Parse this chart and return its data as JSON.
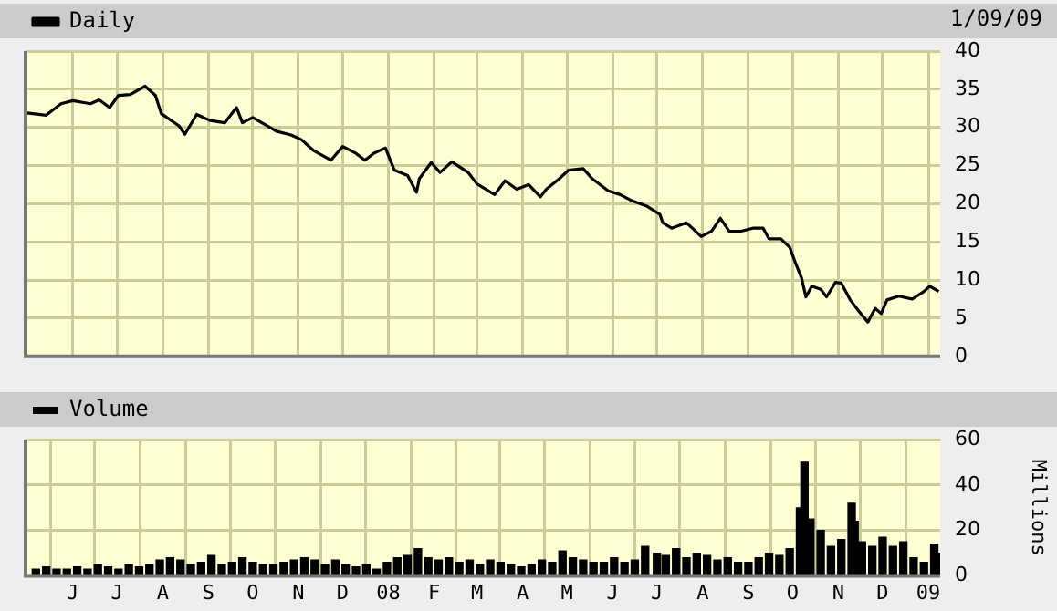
{
  "chart_data": [
    {
      "type": "line",
      "annotations": [
        "1/09/09"
      ],
      "x": [
        "2007-05-01",
        "2007-05-14",
        "2007-05-24",
        "2007-06-01",
        "2007-06-13",
        "2007-06-19",
        "2007-06-26",
        "2007-07-02",
        "2007-07-10",
        "2007-07-20",
        "2007-07-27",
        "2007-07-31",
        "2007-08-12",
        "2007-08-16",
        "2007-08-24",
        "2007-09-02",
        "2007-09-12",
        "2007-09-20",
        "2007-09-24",
        "2007-10-01",
        "2007-10-11",
        "2007-10-17",
        "2007-10-27",
        "2007-11-03",
        "2007-11-11",
        "2007-11-23",
        "2007-12-01",
        "2007-12-10",
        "2007-12-16",
        "2007-12-22",
        "2007-12-30",
        "2008-01-05",
        "2008-01-14",
        "2008-01-20",
        "2008-01-22",
        "2008-01-30",
        "2008-02-05",
        "2008-02-13",
        "2008-02-24",
        "2008-03-01",
        "2008-03-13",
        "2008-03-20",
        "2008-03-28",
        "2008-04-05",
        "2008-04-13",
        "2008-04-17",
        "2008-04-26",
        "2008-05-02",
        "2008-05-12",
        "2008-05-18",
        "2008-05-29",
        "2008-06-06",
        "2008-06-14",
        "2008-06-24",
        "2008-07-03",
        "2008-07-05",
        "2008-07-11",
        "2008-07-21",
        "2008-07-25",
        "2008-07-31",
        "2008-08-07",
        "2008-08-13",
        "2008-08-19",
        "2008-08-27",
        "2008-09-04",
        "2008-09-11",
        "2008-09-15",
        "2008-09-23",
        "2008-09-29",
        "2008-10-03",
        "2008-10-07",
        "2008-10-10",
        "2008-10-14",
        "2008-10-20",
        "2008-10-24",
        "2008-10-30",
        "2008-11-03",
        "2008-11-09",
        "2008-11-15",
        "2008-11-21",
        "2008-11-26",
        "2008-11-30",
        "2008-12-04",
        "2008-12-12",
        "2008-12-21",
        "2008-12-29",
        "2009-01-02",
        "2009-01-08"
      ],
      "series": [
        {
          "name": "Daily",
          "color": "#000000",
          "values": [
            31.9,
            31.6,
            33.1,
            33.5,
            33.1,
            33.6,
            32.6,
            34.2,
            34.3,
            35.4,
            34.2,
            31.8,
            30.2,
            29.1,
            31.7,
            30.9,
            30.6,
            32.6,
            30.6,
            31.3,
            30.2,
            29.5,
            29.0,
            28.4,
            27.0,
            25.7,
            27.5,
            26.6,
            25.7,
            26.6,
            27.3,
            24.4,
            23.7,
            21.5,
            23.3,
            25.4,
            24.1,
            25.5,
            24.1,
            22.6,
            21.2,
            23.0,
            21.9,
            22.5,
            20.9,
            21.9,
            23.3,
            24.4,
            24.6,
            23.3,
            21.7,
            21.2,
            20.4,
            19.7,
            18.6,
            17.5,
            16.8,
            17.5,
            16.8,
            15.7,
            16.4,
            18.1,
            16.4,
            16.4,
            16.8,
            16.8,
            15.4,
            15.4,
            14.3,
            12.2,
            10.3,
            7.8,
            9.2,
            8.8,
            7.8,
            9.7,
            9.6,
            7.4,
            5.9,
            4.5,
            6.3,
            5.6,
            7.4,
            7.9,
            7.5,
            8.5,
            9.2,
            8.5
          ]
        }
      ],
      "xlim": [
        "2007-04-30",
        "2009-01-09"
      ],
      "xticks": [
        {
          "value": "2007-06-01",
          "label": null
        },
        {
          "value": "2007-07-01",
          "label": null
        },
        {
          "value": "2007-08-01",
          "label": null
        },
        {
          "value": "2007-09-01",
          "label": null
        },
        {
          "value": "2007-10-01",
          "label": null
        },
        {
          "value": "2007-11-01",
          "label": null
        },
        {
          "value": "2007-12-01",
          "label": null
        },
        {
          "value": "2008-01-01",
          "label": null
        },
        {
          "value": "2008-02-01",
          "label": null
        },
        {
          "value": "2008-03-01",
          "label": null
        },
        {
          "value": "2008-04-01",
          "label": null
        },
        {
          "value": "2008-05-01",
          "label": null
        },
        {
          "value": "2008-06-01",
          "label": null
        },
        {
          "value": "2008-07-01",
          "label": null
        },
        {
          "value": "2008-08-01",
          "label": null
        },
        {
          "value": "2008-09-01",
          "label": null
        },
        {
          "value": "2008-10-01",
          "label": null
        },
        {
          "value": "2008-11-01",
          "label": null
        },
        {
          "value": "2008-12-01",
          "label": null
        },
        {
          "value": "2009-01-01",
          "label": null
        }
      ],
      "ylim": [
        0,
        40
      ],
      "yticks": [
        0,
        5,
        10,
        15,
        20,
        25,
        30,
        35,
        40
      ],
      "grid": true,
      "legend": "top left",
      "marker": "none",
      "line_style": "solid",
      "tick_labels": "y"
    },
    {
      "type": "bar",
      "ylabel": "Millions",
      "x": [
        "2007-05-07",
        "2007-05-14",
        "2007-05-21",
        "2007-05-28",
        "2007-06-04",
        "2007-06-11",
        "2007-06-18",
        "2007-06-25",
        "2007-07-02",
        "2007-07-09",
        "2007-07-16",
        "2007-07-23",
        "2007-07-30",
        "2007-08-06",
        "2007-08-13",
        "2007-08-20",
        "2007-08-27",
        "2007-09-03",
        "2007-09-10",
        "2007-09-17",
        "2007-09-24",
        "2007-10-01",
        "2007-10-08",
        "2007-10-15",
        "2007-10-22",
        "2007-10-29",
        "2007-11-05",
        "2007-11-12",
        "2007-11-19",
        "2007-11-26",
        "2007-12-03",
        "2007-12-10",
        "2007-12-17",
        "2007-12-24",
        "2007-12-31",
        "2008-01-07",
        "2008-01-14",
        "2008-01-21",
        "2008-01-28",
        "2008-02-04",
        "2008-02-11",
        "2008-02-18",
        "2008-02-25",
        "2008-03-03",
        "2008-03-10",
        "2008-03-17",
        "2008-03-24",
        "2008-03-31",
        "2008-04-07",
        "2008-04-14",
        "2008-04-21",
        "2008-04-28",
        "2008-05-05",
        "2008-05-12",
        "2008-05-19",
        "2008-05-26",
        "2008-06-02",
        "2008-06-09",
        "2008-06-16",
        "2008-06-23",
        "2008-07-01",
        "2008-07-07",
        "2008-07-14",
        "2008-07-21",
        "2008-07-28",
        "2008-08-04",
        "2008-08-11",
        "2008-08-18",
        "2008-08-25",
        "2008-09-01",
        "2008-09-08",
        "2008-09-15",
        "2008-09-22",
        "2008-09-29",
        "2008-10-06",
        "2008-10-09",
        "2008-10-13",
        "2008-10-20",
        "2008-10-27",
        "2008-11-03",
        "2008-11-10",
        "2008-11-12",
        "2008-11-17",
        "2008-11-24",
        "2008-12-01",
        "2008-12-08",
        "2008-12-15",
        "2008-12-22",
        "2008-12-29",
        "2009-01-05",
        "2009-01-08"
      ],
      "series": [
        {
          "name": "Volume",
          "color": "#000000",
          "values": [
            3,
            4,
            3,
            3,
            4,
            3,
            5,
            4,
            3,
            5,
            4,
            5,
            7,
            8,
            7,
            5,
            6,
            9,
            5,
            6,
            8,
            6,
            5,
            5,
            6,
            7,
            8,
            7,
            5,
            7,
            5,
            4,
            5,
            3,
            6,
            8,
            9,
            12,
            8,
            7,
            8,
            6,
            7,
            5,
            7,
            6,
            5,
            4,
            5,
            7,
            6,
            11,
            8,
            7,
            6,
            6,
            8,
            6,
            7,
            13,
            10,
            9,
            12,
            8,
            10,
            9,
            7,
            8,
            6,
            6,
            8,
            10,
            9,
            12,
            30,
            50,
            25,
            20,
            13,
            16,
            32,
            24,
            15,
            13,
            17,
            13,
            15,
            8,
            6,
            14,
            10
          ]
        }
      ],
      "xlim": [
        "2007-04-30",
        "2009-01-09"
      ],
      "xticks": [
        {
          "value": "2007-06-01",
          "label": "J"
        },
        {
          "value": "2007-07-01",
          "label": "J"
        },
        {
          "value": "2007-08-01",
          "label": "A"
        },
        {
          "value": "2007-09-01",
          "label": "S"
        },
        {
          "value": "2007-10-01",
          "label": "O"
        },
        {
          "value": "2007-11-01",
          "label": "N"
        },
        {
          "value": "2007-12-01",
          "label": "D"
        },
        {
          "value": "2008-01-01",
          "label": "08"
        },
        {
          "value": "2008-02-01",
          "label": "F"
        },
        {
          "value": "2008-03-01",
          "label": "M"
        },
        {
          "value": "2008-04-01",
          "label": "A"
        },
        {
          "value": "2008-05-01",
          "label": "M"
        },
        {
          "value": "2008-06-01",
          "label": "J"
        },
        {
          "value": "2008-07-01",
          "label": "J"
        },
        {
          "value": "2008-08-01",
          "label": "A"
        },
        {
          "value": "2008-09-01",
          "label": "S"
        },
        {
          "value": "2008-10-01",
          "label": "O"
        },
        {
          "value": "2008-11-01",
          "label": "N"
        },
        {
          "value": "2008-12-01",
          "label": "D"
        },
        {
          "value": "2009-01-01",
          "label": "09"
        }
      ],
      "ylim": [
        0,
        60
      ],
      "yticks": [
        0,
        20,
        40,
        60
      ],
      "grid": true,
      "legend": "top left"
    }
  ]
}
